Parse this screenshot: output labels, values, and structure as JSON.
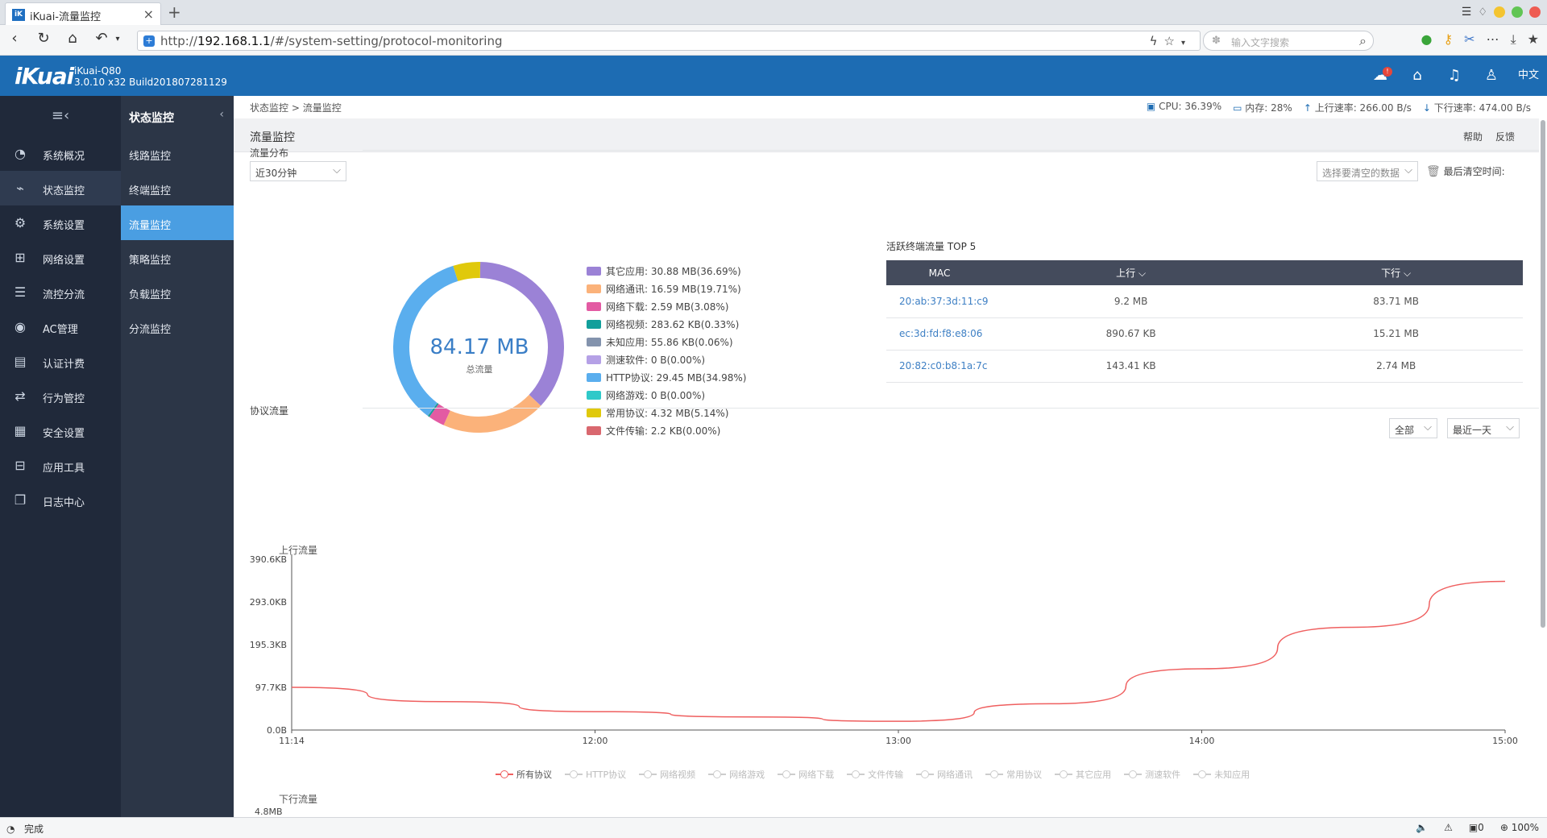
{
  "browser": {
    "tab_title": "iKuai-流量监控",
    "tab_icon": "iK",
    "url_prefix": "http://",
    "url_host": "192.168.1.1",
    "url_path": "/#/system-setting/protocol-monitoring",
    "search_placeholder": "输入文字搜索",
    "status_text": "完成",
    "zoom": "100%",
    "download_count": "0"
  },
  "header": {
    "logo": "iKuai",
    "model": "iKuai-Q80",
    "version": "3.0.10 x32 Build201807281129",
    "notify_badge": "!",
    "lang": "中文"
  },
  "nav1": {
    "items": [
      {
        "label": "系统概况",
        "icon": "dashboard-icon"
      },
      {
        "label": "状态监控",
        "icon": "pulse-icon"
      },
      {
        "label": "系统设置",
        "icon": "gear-icon"
      },
      {
        "label": "网络设置",
        "icon": "network-icon"
      },
      {
        "label": "流控分流",
        "icon": "sliders-icon"
      },
      {
        "label": "AC管理",
        "icon": "wifi-icon"
      },
      {
        "label": "认证计费",
        "icon": "id-card-icon"
      },
      {
        "label": "行为管控",
        "icon": "arrows-icon"
      },
      {
        "label": "安全设置",
        "icon": "firewall-icon"
      },
      {
        "label": "应用工具",
        "icon": "apps-icon"
      },
      {
        "label": "日志中心",
        "icon": "doc-icon"
      }
    ]
  },
  "nav2": {
    "title": "状态监控",
    "items": [
      "线路监控",
      "终端监控",
      "流量监控",
      "策略监控",
      "负载监控",
      "分流监控"
    ]
  },
  "page": {
    "breadcrumb_parent": "状态监控",
    "breadcrumb_sep": ">",
    "breadcrumb_current": "流量监控",
    "title": "流量监控",
    "help": "帮助",
    "feedback": "反馈",
    "cpu": "CPU: 36.39%",
    "mem": "内存: 28%",
    "up_rate": "上行速率: 266.00 B/s",
    "down_rate": "下行速率: 474.00 B/s"
  },
  "distribution": {
    "section_title": "流量分布",
    "period": "近30分钟",
    "clear_select": "选择要清空的数据",
    "last_clear": "最后清空时间:",
    "total": "84.17 MB",
    "total_label": "总流量",
    "legend": [
      {
        "label": "其它应用: 30.88 MB(36.69%)",
        "color": "#9b82d6",
        "pct": 36.69
      },
      {
        "label": "网络通讯: 16.59 MB(19.71%)",
        "color": "#fbb27a",
        "pct": 19.71
      },
      {
        "label": "网络下载: 2.59 MB(3.08%)",
        "color": "#e35ba3",
        "pct": 3.08
      },
      {
        "label": "网络视频: 283.62 KB(0.33%)",
        "color": "#129f9b",
        "pct": 0.33
      },
      {
        "label": "未知应用: 55.86 KB(0.06%)",
        "color": "#8393ad",
        "pct": 0.06
      },
      {
        "label": "测速软件: 0 B(0.00%)",
        "color": "#b5a1e6",
        "pct": 0
      },
      {
        "label": "HTTP协议: 29.45 MB(34.98%)",
        "color": "#5aaeee",
        "pct": 34.98
      },
      {
        "label": "网络游戏: 0 B(0.00%)",
        "color": "#2fc9c9",
        "pct": 0
      },
      {
        "label": "常用协议: 4.32 MB(5.14%)",
        "color": "#e0c90b",
        "pct": 5.14
      },
      {
        "label": "文件传输: 2.2 KB(0.00%)",
        "color": "#d9686f",
        "pct": 0
      }
    ]
  },
  "top5": {
    "title": "活跃终端流量 TOP 5",
    "headers": [
      "MAC",
      "上行",
      "下行"
    ],
    "rows": [
      {
        "mac": "20:ab:37:3d:11:c9",
        "up": "9.2 MB",
        "down": "83.71 MB"
      },
      {
        "mac": "ec:3d:fd:f8:e8:06",
        "up": "890.67 KB",
        "down": "15.21 MB"
      },
      {
        "mac": "20:82:c0:b8:1a:7c",
        "up": "143.41 KB",
        "down": "2.74 MB"
      }
    ]
  },
  "protocol": {
    "section_title": "协议流量",
    "filter": "全部",
    "range": "最近一天",
    "down_label": "下行流量",
    "down_first_tick": "4.8MB",
    "series_names": [
      "所有协议",
      "HTTP协议",
      "网络视频",
      "网络游戏",
      "网络下载",
      "文件传输",
      "网络通讯",
      "常用协议",
      "其它应用",
      "测速软件",
      "未知应用"
    ]
  },
  "chart_data": {
    "type": "line",
    "ylabel": "上行流量",
    "x": [
      "11:14",
      "12:00",
      "13:00",
      "14:00",
      "15:00"
    ],
    "yticks": [
      "0.0B",
      "97.7KB",
      "195.3KB",
      "293.0KB",
      "390.6KB"
    ],
    "ylim": [
      0,
      390.6
    ],
    "y_unit": "KB",
    "series": [
      {
        "name": "所有协议",
        "color": "#ef5f5f",
        "points": [
          [
            0,
            97.7
          ],
          [
            0.5,
            65
          ],
          [
            1,
            42
          ],
          [
            1.5,
            30
          ],
          [
            2,
            20
          ],
          [
            2.5,
            60
          ],
          [
            3,
            140
          ],
          [
            3.5,
            235
          ],
          [
            4,
            340
          ]
        ]
      }
    ]
  }
}
